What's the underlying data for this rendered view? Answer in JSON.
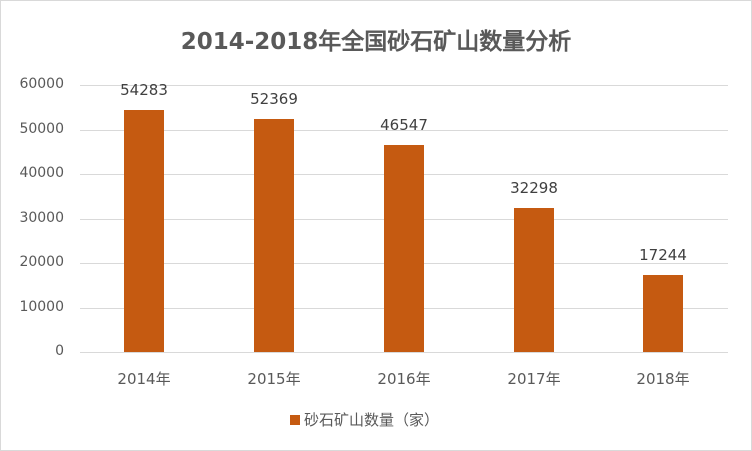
{
  "chart_data": {
    "type": "bar",
    "title": "2014-2018年全国砂石矿山数量分析",
    "categories": [
      "2014年",
      "2015年",
      "2016年",
      "2017年",
      "2018年"
    ],
    "series": [
      {
        "name": "砂石矿山数量（家）",
        "values": [
          54283,
          52369,
          46547,
          32298,
          17244
        ],
        "color": "#c55a11"
      }
    ],
    "xlabel": "",
    "ylabel": "",
    "ylim": [
      0,
      60000
    ],
    "yticks": [
      "0",
      "10000",
      "20000",
      "30000",
      "40000",
      "50000",
      "60000"
    ],
    "grid": true,
    "legend_position": "bottom",
    "data_labels": [
      "54283",
      "52369",
      "46547",
      "32298",
      "17244"
    ]
  }
}
